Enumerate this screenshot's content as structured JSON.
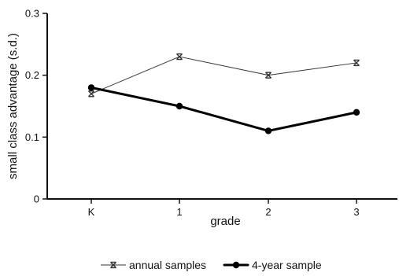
{
  "chart_data": {
    "type": "line",
    "categories": [
      "K",
      "1",
      "2",
      "3"
    ],
    "xlabel": "grade",
    "ylabel": "small class advantage (s.d.)",
    "ylim": [
      0,
      0.3
    ],
    "yticks": [
      0,
      0.1,
      0.2,
      0.3
    ],
    "ytick_labels": [
      "0",
      "0.1",
      "0.2",
      "0.3"
    ],
    "grid": false,
    "legend_position": "bottom",
    "series": [
      {
        "name": "annual samples",
        "values": [
          0.17,
          0.23,
          0.2,
          0.22
        ],
        "marker": "x-bar",
        "color": "#333333"
      },
      {
        "name": "4-year sample",
        "values": [
          0.18,
          0.15,
          0.11,
          0.14
        ],
        "marker": "filled-circle",
        "color": "#000000"
      }
    ]
  }
}
